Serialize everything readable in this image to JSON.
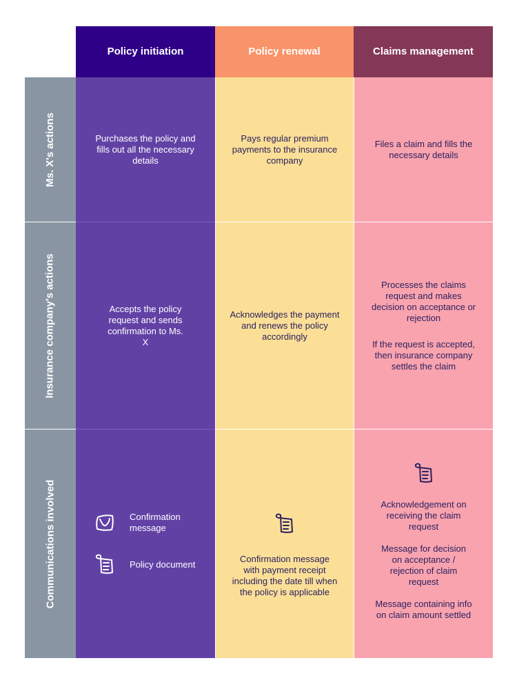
{
  "columns": [
    "Policy initiation",
    "Policy renewal",
    "Claims management"
  ],
  "rows": [
    "Ms. X's actions",
    "Insurance company's actions",
    "Communications involved"
  ],
  "cells": {
    "r1": [
      "Purchases the policy and fills out all the necessary details",
      "Pays regular premium payments to the insurance company",
      "Files a claim and fills the necessary details"
    ],
    "r2": [
      "Accepts the policy request and sends confirmation to Ms. X",
      "Acknowledges the payment and renews the policy accordingly",
      [
        "Processes the claims request and makes decision on acceptance or rejection",
        "If the request is accepted, then insurance company settles the claim"
      ]
    ],
    "r3": {
      "c1": [
        {
          "icon": "message-icon",
          "label": "Confirmation message"
        },
        {
          "icon": "document-icon",
          "label": "Policy document"
        }
      ],
      "c2": {
        "icon": "document-icon",
        "text": "Confirmation message with payment receipt including the date till when the policy is applicable"
      },
      "c3": {
        "icon": "document-icon",
        "items": [
          "Acknowledgement on receiving the claim request",
          "Message for decision on acceptance / rejection of claim request",
          "Message containing info on claim amount settled"
        ]
      }
    }
  },
  "colors": {
    "initiation_header": "#2e0087",
    "initiation_body": "#6241a5",
    "renewal_header": "#f99369",
    "renewal_body": "#fbdf96",
    "claims_header": "#843756",
    "claims_body": "#f9a3ae",
    "row_label": "#8a95a3"
  }
}
